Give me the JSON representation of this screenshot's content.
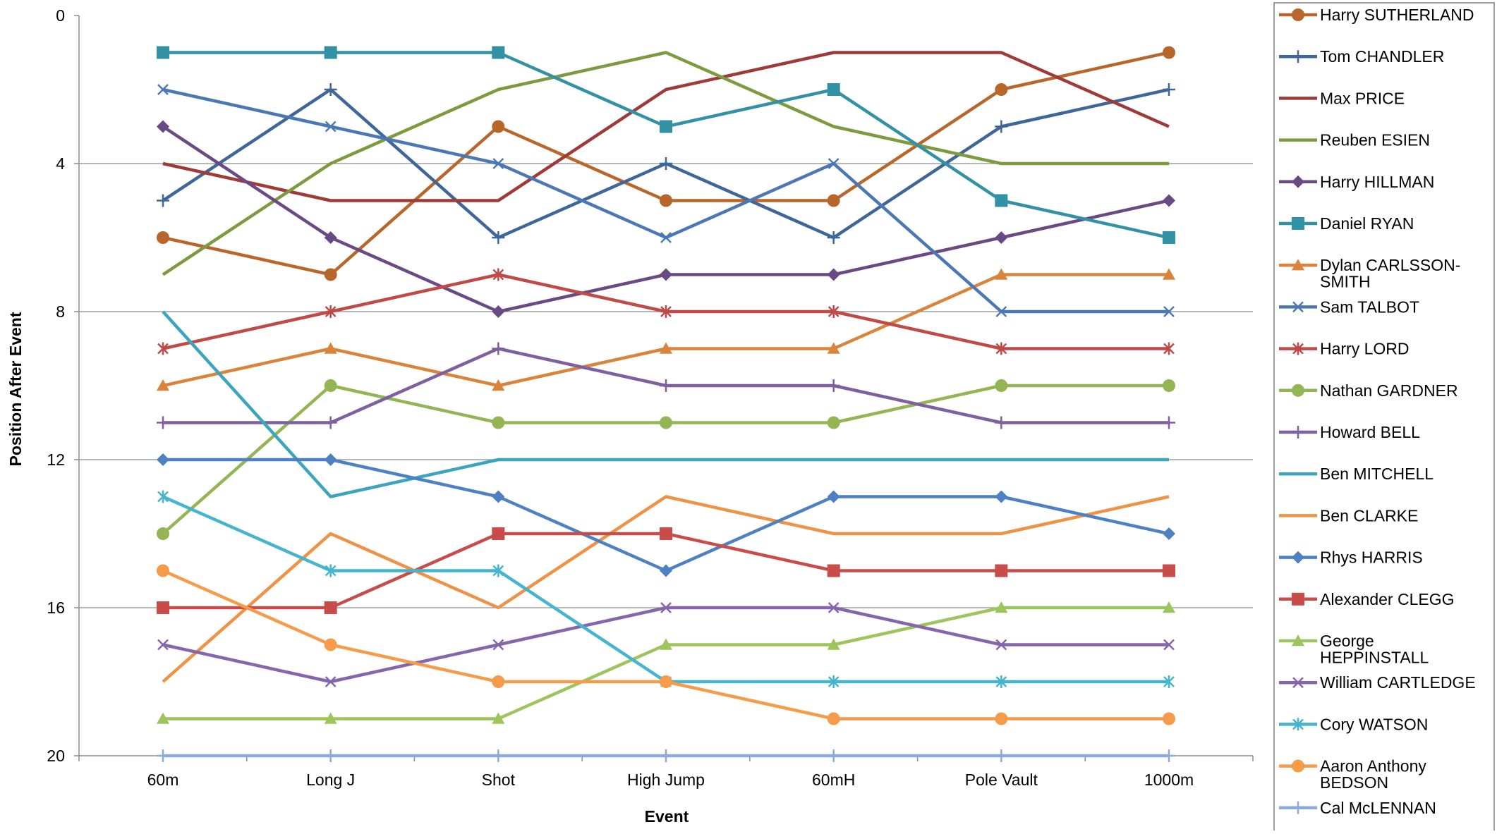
{
  "chart_data": {
    "type": "line",
    "title": "",
    "xlabel": "Event",
    "ylabel": "Position After Event",
    "categories": [
      "60m",
      "Long J",
      "Shot",
      "High Jump",
      "60mH",
      "Pole Vault",
      "1000m"
    ],
    "ylim": [
      0,
      20
    ],
    "y_inverted": true,
    "yticks": [
      0,
      4,
      8,
      12,
      16,
      20
    ],
    "grid": "horizontal",
    "legend_position": "right",
    "series": [
      {
        "name": "Harry SUTHERLAND",
        "values": [
          6,
          7,
          3,
          5,
          5,
          2,
          1
        ],
        "color": "#B8662A",
        "marker": "circle"
      },
      {
        "name": "Tom CHANDLER",
        "values": [
          5,
          2,
          6,
          4,
          6,
          3,
          2
        ],
        "color": "#3E6699",
        "marker": "plus"
      },
      {
        "name": "Max PRICE",
        "values": [
          4,
          5,
          5,
          2,
          1,
          1,
          3
        ],
        "color": "#A03A38",
        "marker": "none"
      },
      {
        "name": "Reuben ESIEN",
        "values": [
          7,
          4,
          2,
          1,
          3,
          4,
          4
        ],
        "color": "#7E9A3E",
        "marker": "none"
      },
      {
        "name": "Harry HILLMAN",
        "values": [
          3,
          6,
          8,
          7,
          7,
          6,
          5
        ],
        "color": "#6A4A85",
        "marker": "diamond"
      },
      {
        "name": "Daniel RYAN",
        "values": [
          1,
          1,
          1,
          3,
          2,
          5,
          6
        ],
        "color": "#3391A6",
        "marker": "square"
      },
      {
        "name": "Dylan CARLSSON-SMITH",
        "values": [
          10,
          9,
          10,
          9,
          9,
          7,
          7
        ],
        "color": "#D9843A",
        "marker": "triangle"
      },
      {
        "name": "Sam TALBOT",
        "values": [
          2,
          3,
          4,
          6,
          4,
          8,
          8
        ],
        "color": "#4B78B5",
        "marker": "x"
      },
      {
        "name": "Harry LORD",
        "values": [
          9,
          8,
          7,
          8,
          8,
          9,
          9
        ],
        "color": "#BF4A48",
        "marker": "star"
      },
      {
        "name": "Nathan GARDNER",
        "values": [
          14,
          10,
          11,
          11,
          11,
          10,
          10
        ],
        "color": "#93B554",
        "marker": "circle"
      },
      {
        "name": "Howard BELL",
        "values": [
          11,
          11,
          9,
          10,
          10,
          11,
          11
        ],
        "color": "#7E5FA0",
        "marker": "plus"
      },
      {
        "name": "Ben MITCHELL",
        "values": [
          8,
          13,
          12,
          12,
          12,
          12,
          12
        ],
        "color": "#3BA5BD",
        "marker": "none"
      },
      {
        "name": "Ben CLARKE",
        "values": [
          18,
          14,
          16,
          13,
          14,
          14,
          13
        ],
        "color": "#EE9245",
        "marker": "none"
      },
      {
        "name": "Rhys HARRIS",
        "values": [
          12,
          12,
          13,
          15,
          13,
          13,
          14
        ],
        "color": "#4D81C3",
        "marker": "diamond"
      },
      {
        "name": "Alexander CLEGG",
        "values": [
          16,
          16,
          14,
          14,
          15,
          15,
          15
        ],
        "color": "#C74C4A",
        "marker": "square"
      },
      {
        "name": "George HEPPINSTALL",
        "values": [
          19,
          19,
          19,
          17,
          17,
          16,
          16
        ],
        "color": "#9DC55B",
        "marker": "triangle"
      },
      {
        "name": "William CARTLEDGE",
        "values": [
          17,
          18,
          17,
          16,
          16,
          17,
          17
        ],
        "color": "#8566AC",
        "marker": "x"
      },
      {
        "name": "Cory WATSON",
        "values": [
          13,
          15,
          15,
          18,
          18,
          18,
          18
        ],
        "color": "#45B5CE",
        "marker": "star"
      },
      {
        "name": "Aaron Anthony BEDSON",
        "values": [
          15,
          17,
          18,
          18,
          19,
          19,
          19
        ],
        "color": "#F59B4A",
        "marker": "circle"
      },
      {
        "name": "Cal McLENNAN",
        "values": [
          20,
          20,
          20,
          20,
          20,
          20,
          20
        ],
        "color": "#8EA9DB",
        "marker": "plus"
      }
    ]
  }
}
